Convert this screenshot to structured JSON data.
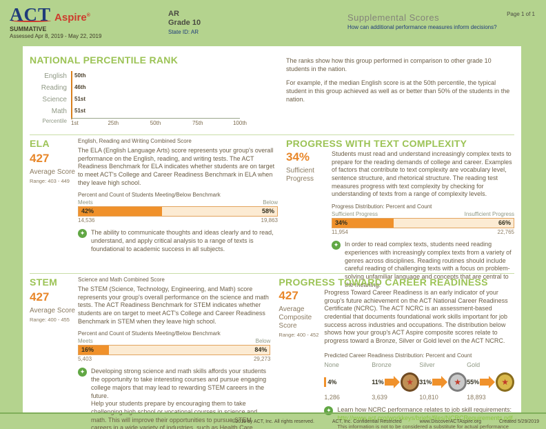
{
  "header": {
    "logo_act": "ACT",
    "logo_aspire": "Aspire",
    "program": "SUMMATIVE",
    "assessed": "Assessed Apr 8, 2019 - May 22, 2019",
    "region": "AR",
    "grade": "Grade 10",
    "state_id": "State ID: AR",
    "report_title": "Supplemental Scores",
    "report_subtitle": "How can additional performance measures inform decisions?",
    "page": "Page 1 of 1"
  },
  "npr": {
    "title": "NATIONAL PERCENTILE RANK",
    "axis_label": "Percentile",
    "rows": [
      {
        "label": "English",
        "value": 50,
        "value_label": "50th"
      },
      {
        "label": "Reading",
        "value": 46,
        "value_label": "46th"
      },
      {
        "label": "Science",
        "value": 51,
        "value_label": "51st"
      },
      {
        "label": "Math",
        "value": 51,
        "value_label": "51st"
      }
    ],
    "ticks": [
      "1st",
      "25th",
      "50th",
      "75th",
      "100th"
    ],
    "description_1": "The ranks show how this group performed in comparison to other grade 10 students in the nation.",
    "description_2": "For example, if the median English score is at the 50th percentile, the typical student in this group achieved as well as or better than 50% of the students in the nation."
  },
  "ela": {
    "title": "ELA",
    "score": "427",
    "score_label": "Average Score",
    "range": "Range: 403 - 449",
    "subtitle": "English, Reading and Writing Combined Score",
    "body": "The ELA (English Language Arts) score represents your group's overall performance on the English, reading, and writing tests. The ACT Readiness Benchmark for ELA indicates whether students are on target to meet ACT's College and Career Readiness Benchmark in ELA when they leave high school.",
    "bench_caption": "Percent and Count of Students Meeting/Below Benchmark",
    "meets_label": "Meets",
    "below_label": "Below",
    "meets_value": 42,
    "meets_pct": "42%",
    "below_pct": "58%",
    "meets_count": "14,536",
    "below_count": "19,863",
    "tip": "The ability to communicate thoughts and ideas clearly and to read, understand, and apply critical analysis to a range of texts is foundational to academic success in all subjects."
  },
  "text_complexity": {
    "title": "PROGRESS WITH TEXT COMPLEXITY",
    "pct": "34%",
    "pct_label": "Sufficient Progress",
    "body": "Students must read and understand increasingly complex texts to prepare for the reading demands of college and career. Examples of factors that contribute to text complexity are vocabulary level, sentence structure, and rhetorical structure. The reading test measures progress with text complexity by checking for understanding of texts from a range of complexity levels.",
    "bench_caption": "Progress Distribution: Percent and Count",
    "meets_label": "Sufficient Progress",
    "below_label": "Insufficient Progress",
    "meets_value": 34,
    "meets_pct": "34%",
    "below_pct": "66%",
    "meets_count": "11,954",
    "below_count": "22,765",
    "tip": "In order to read complex texts, students need reading experiences with increasingly complex texts from a variety of genres across disciplines. Reading routines should include careful reading of challenging texts with a focus on problem-solving unfamiliar language and concepts that are central to the meaning."
  },
  "stem": {
    "title": "STEM",
    "score": "427",
    "score_label": "Average Score",
    "range": "Range: 400 - 455",
    "subtitle": "Science and Math Combined Score",
    "body": "The STEM (Science, Technology, Engineering, and Math) score represents your group's overall performance on the science and math tests. The ACT Readiness Benchmark for STEM indicates whether students are on target to meet ACT's College and Career Readiness Benchmark in STEM when they leave high school.",
    "bench_caption": "Percent and Count of Students Meeting/Below Benchmark",
    "meets_label": "Meets",
    "below_label": "Below",
    "meets_value": 16,
    "meets_pct": "16%",
    "below_pct": "84%",
    "meets_count": "5,403",
    "below_count": "29,273",
    "tip_1": "Developing strong science and math skills affords your students the opportunity to take interesting courses and pursue engaging college majors that may lead to rewarding STEM careers in the future.",
    "tip_2": "Help your students prepare by encouraging them to take challenging high school or vocational courses in science and math. This will improve their opportunities to pursue STEM careers in a wide variety of industries, such as Health Care, Engineering, Education, and Technology."
  },
  "career": {
    "title": "PROGRESS TOWARD CAREER READINESS",
    "score": "427",
    "score_label": "Average Composite Score",
    "range": "Range: 400 - 452",
    "body": "Progress Toward Career Readiness is an early indicator of your group's future achievement on the ACT National Career Readiness Certificate (NCRC). The ACT NCRC is an assessment-based credential that documents foundational work skills important for job success across industries and occupations. The distribution below shows how your group's ACT Aspire composite scores relate to progress toward a Bronze, Silver or Gold level on the ACT NCRC.",
    "dist_caption": "Predicted Career Readiness Distribution: Percent and Count",
    "levels": [
      {
        "label": "None",
        "pct": "4%",
        "count": "1,286"
      },
      {
        "label": "Bronze",
        "pct": "11%",
        "count": "3,639"
      },
      {
        "label": "Silver",
        "pct": "31%",
        "count": "10,810"
      },
      {
        "label": "Gold",
        "pct": "55%",
        "count": "18,893"
      }
    ],
    "medal_star": "★",
    "tip_text": "Learn how NCRC performance relates to job skill requirements:",
    "tip_link": "http://www.act.org/workkeys/briefs/files/NCRCRequirements.pdf.",
    "tip_note": "This information is not to be considered a substitute for actual performance on the ACT NCRC."
  },
  "footer": {
    "copyright": "©2019 by ACT, Inc. All rights reserved.",
    "confidential": "ACT, Inc. Confidential Restricted",
    "website": "www.DiscoverACTAspire.org",
    "created": "Created 5/29/2019"
  },
  "icons": {
    "tip_star": "✦"
  },
  "colors": {
    "page_green": "#b4d38e",
    "title_green": "#9cc356",
    "bar_orange": "#f0912b",
    "score_orange": "#e8872a",
    "bar_cream": "#fcebd3",
    "body_brown": "#6b5d45",
    "navy": "#1f3c7a",
    "logo_red": "#ce3a2c",
    "link_green": "#8bc540",
    "tip_icon_green": "#61a744"
  },
  "chart_data": [
    {
      "type": "bar",
      "orientation": "horizontal",
      "title": "NATIONAL PERCENTILE RANK",
      "categories": [
        "English",
        "Reading",
        "Science",
        "Math"
      ],
      "values": [
        50,
        46,
        51,
        51
      ],
      "value_labels": [
        "50th",
        "46th",
        "51st",
        "51st"
      ],
      "xlabel": "Percentile",
      "xticks": [
        "1st",
        "25th",
        "50th",
        "75th",
        "100th"
      ],
      "xlim": [
        1,
        100
      ],
      "grid": false,
      "bar_color": "#f0912b"
    },
    {
      "type": "bar",
      "title": "ELA — Percent and Count of Students Meeting/Below Benchmark",
      "categories": [
        "Meets",
        "Below"
      ],
      "values": [
        42,
        58
      ],
      "counts": [
        14536,
        19863
      ]
    },
    {
      "type": "bar",
      "title": "Progress Distribution: Percent and Count (Text Complexity)",
      "categories": [
        "Sufficient Progress",
        "Insufficient Progress"
      ],
      "values": [
        34,
        66
      ],
      "counts": [
        11954,
        22765
      ]
    },
    {
      "type": "bar",
      "title": "STEM — Percent and Count of Students Meeting/Below Benchmark",
      "categories": [
        "Meets",
        "Below"
      ],
      "values": [
        16,
        84
      ],
      "counts": [
        5403,
        29273
      ]
    },
    {
      "type": "bar",
      "title": "Predicted Career Readiness Distribution: Percent and Count",
      "categories": [
        "None",
        "Bronze",
        "Silver",
        "Gold"
      ],
      "values": [
        4,
        11,
        31,
        55
      ],
      "counts": [
        1286,
        3639,
        10810,
        18893
      ]
    }
  ]
}
